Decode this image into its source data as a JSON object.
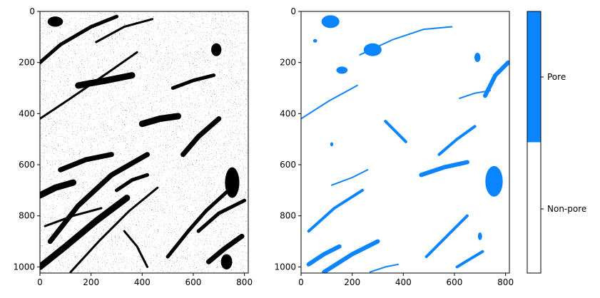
{
  "chart_data": [
    {
      "type": "heatmap",
      "title": "",
      "xlabel": "",
      "ylabel": "",
      "colors": [
        "#000000",
        "#ffffff"
      ],
      "xlim": [
        0,
        815
      ],
      "ylim": [
        1024,
        0
      ],
      "x_ticks": [
        0,
        200,
        400,
        600,
        800
      ],
      "y_ticks": [
        0,
        200,
        400,
        600,
        800,
        1000
      ],
      "dark_streaks": [
        [
          [
            0,
            420
          ],
          [
            120,
            340
          ],
          [
            280,
            230
          ],
          [
            380,
            160
          ]
        ],
        [
          [
            0,
            200
          ],
          [
            80,
            130
          ],
          [
            200,
            60
          ],
          [
            300,
            20
          ]
        ],
        [
          [
            40,
            900
          ],
          [
            150,
            760
          ],
          [
            280,
            640
          ],
          [
            420,
            560
          ]
        ],
        [
          [
            0,
            1000
          ],
          [
            100,
            920
          ],
          [
            220,
            820
          ],
          [
            340,
            730
          ]
        ],
        [
          [
            120,
            1020
          ],
          [
            230,
            900
          ],
          [
            350,
            780
          ],
          [
            460,
            690
          ]
        ],
        [
          [
            500,
            960
          ],
          [
            580,
            860
          ],
          [
            650,
            780
          ],
          [
            760,
            680
          ]
        ],
        [
          [
            560,
            560
          ],
          [
            620,
            490
          ],
          [
            700,
            420
          ]
        ],
        [
          [
            150,
            290
          ],
          [
            260,
            270
          ],
          [
            360,
            250
          ]
        ],
        [
          [
            20,
            840
          ],
          [
            130,
            800
          ],
          [
            240,
            770
          ]
        ],
        [
          [
            620,
            860
          ],
          [
            700,
            790
          ],
          [
            800,
            740
          ]
        ],
        [
          [
            80,
            620
          ],
          [
            180,
            580
          ],
          [
            280,
            560
          ]
        ],
        [
          [
            400,
            440
          ],
          [
            470,
            420
          ],
          [
            540,
            410
          ]
        ],
        [
          [
            220,
            120
          ],
          [
            330,
            60
          ],
          [
            440,
            30
          ]
        ],
        [
          [
            300,
            700
          ],
          [
            360,
            660
          ],
          [
            420,
            640
          ]
        ],
        [
          [
            660,
            980
          ],
          [
            720,
            930
          ],
          [
            790,
            880
          ]
        ],
        [
          [
            0,
            720
          ],
          [
            60,
            690
          ],
          [
            130,
            670
          ]
        ],
        [
          [
            330,
            860
          ],
          [
            380,
            920
          ],
          [
            420,
            1000
          ]
        ],
        [
          [
            520,
            300
          ],
          [
            600,
            270
          ],
          [
            680,
            250
          ]
        ]
      ],
      "dark_blobs": [
        [
          752,
          670,
          28,
          60
        ],
        [
          730,
          980,
          22,
          30
        ],
        [
          60,
          40,
          30,
          20
        ],
        [
          690,
          150,
          20,
          25
        ]
      ]
    },
    {
      "type": "heatmap",
      "title": "",
      "xlabel": "",
      "ylabel": "",
      "colors": [
        "#ffffff",
        "#0a84ff"
      ],
      "xlim": [
        0,
        815
      ],
      "ylim": [
        1024,
        0
      ],
      "x_ticks": [
        0,
        200,
        400,
        600,
        800
      ],
      "y_ticks": [
        0,
        200,
        400,
        600,
        800,
        1000
      ],
      "pore_regions": [
        [
          [
            0,
            420
          ],
          [
            110,
            350
          ],
          [
            220,
            290
          ]
        ],
        [
          [
            30,
            860
          ],
          [
            130,
            770
          ],
          [
            240,
            700
          ]
        ],
        [
          [
            90,
            1020
          ],
          [
            200,
            950
          ],
          [
            300,
            900
          ]
        ],
        [
          [
            230,
            170
          ],
          [
            360,
            110
          ],
          [
            480,
            70
          ],
          [
            590,
            60
          ]
        ],
        [
          [
            490,
            960
          ],
          [
            570,
            880
          ],
          [
            650,
            800
          ]
        ],
        [
          [
            470,
            640
          ],
          [
            560,
            610
          ],
          [
            650,
            590
          ]
        ],
        [
          [
            120,
            680
          ],
          [
            200,
            650
          ],
          [
            260,
            620
          ]
        ],
        [
          [
            540,
            560
          ],
          [
            610,
            500
          ],
          [
            680,
            450
          ]
        ],
        [
          [
            30,
            990
          ],
          [
            90,
            950
          ],
          [
            150,
            920
          ]
        ],
        [
          [
            270,
            1020
          ],
          [
            330,
            1000
          ],
          [
            380,
            990
          ]
        ],
        [
          [
            610,
            1000
          ],
          [
            660,
            970
          ],
          [
            710,
            940
          ]
        ],
        [
          [
            720,
            330
          ],
          [
            760,
            250
          ],
          [
            810,
            200
          ]
        ],
        [
          [
            620,
            340
          ],
          [
            680,
            320
          ],
          [
            740,
            310
          ]
        ],
        [
          [
            330,
            430
          ],
          [
            370,
            470
          ],
          [
            410,
            510
          ]
        ]
      ],
      "pore_blobs": [
        [
          755,
          665,
          34,
          60
        ],
        [
          115,
          40,
          35,
          25
        ],
        [
          280,
          150,
          35,
          25
        ],
        [
          160,
          230,
          22,
          14
        ],
        [
          55,
          115,
          8,
          7
        ],
        [
          690,
          180,
          12,
          18
        ],
        [
          700,
          880,
          8,
          15
        ],
        [
          120,
          520,
          6,
          8
        ]
      ]
    }
  ],
  "colorbar": {
    "colors": [
      "#ffffff",
      "#0a84ff"
    ],
    "labels": [
      "Non-pore",
      "Pore"
    ]
  }
}
